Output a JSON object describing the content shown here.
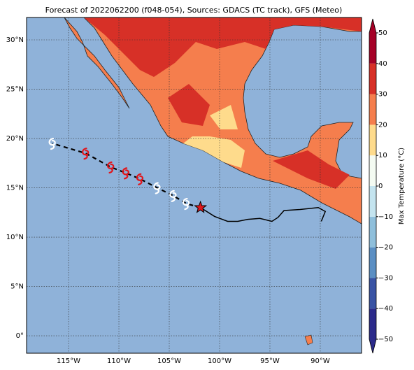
{
  "chart_data": {
    "type": "map",
    "title": "Forecast of 2022062200 (f048-054), Sources: GDACS (TC track), GFS (Meteo)",
    "xlim": [
      -119.17,
      -85.9
    ],
    "ylim": [
      -1.77,
      32.27
    ],
    "grid": true,
    "xticks": [
      {
        "value": -115,
        "label": "115°W"
      },
      {
        "value": -110,
        "label": "110°W"
      },
      {
        "value": -105,
        "label": "105°W"
      },
      {
        "value": -100,
        "label": "100°W"
      },
      {
        "value": -95,
        "label": "95°W"
      },
      {
        "value": -90,
        "label": "90°W"
      }
    ],
    "yticks": [
      {
        "value": 0,
        "label": "0°"
      },
      {
        "value": 5,
        "label": "5°N"
      },
      {
        "value": 10,
        "label": "10°N"
      },
      {
        "value": 15,
        "label": "15°N"
      },
      {
        "value": 20,
        "label": "20°N"
      },
      {
        "value": 25,
        "label": "25°N"
      },
      {
        "value": 30,
        "label": "30°N"
      }
    ],
    "colorbar": {
      "label": "Max Temperature (°C)",
      "lim": [
        -50,
        50
      ],
      "ticks": [
        {
          "value": -50,
          "label": "−50"
        },
        {
          "value": -40,
          "label": "−40"
        },
        {
          "value": -30,
          "label": "−30"
        },
        {
          "value": -20,
          "label": "−20"
        },
        {
          "value": -10,
          "label": "−10"
        },
        0,
        10,
        20,
        30,
        40,
        50
      ],
      "colors": [
        "#2b2a8a",
        "#3953a4",
        "#5b8fc3",
        "#8fbfdb",
        "#c4e4ef",
        "#f4fbf2",
        "#fedb8c",
        "#f57e4d",
        "#d73027",
        "#a50026"
      ]
    },
    "past_track": {
      "color": "#000000",
      "x": [
        -101.9,
        -100.5,
        -99.2,
        -98.2,
        -97.2,
        -96.0,
        -94.8,
        -94.2,
        -93.6,
        -92.0,
        -90.2,
        -89.5,
        -89.9
      ],
      "y": [
        13.0,
        12.1,
        11.6,
        11.6,
        11.8,
        11.9,
        11.6,
        12.0,
        12.7,
        12.8,
        13.0,
        12.6,
        11.6
      ]
    },
    "current_position": {
      "color": "#e0161c",
      "x": -101.9,
      "y": 13.0
    },
    "forecast": {
      "x": [
        -103.3,
        -104.6,
        -106.2,
        -107.9,
        -109.3,
        -110.8,
        -113.3,
        -116.6
      ],
      "y": [
        13.4,
        14.2,
        15.0,
        15.9,
        16.5,
        17.1,
        18.5,
        19.5
      ],
      "colors": [
        "#ffffff",
        "#ffffff",
        "#ffffff",
        "#e0161c",
        "#e0161c",
        "#e0161c",
        "#e0161c",
        "#ffffff"
      ]
    }
  }
}
